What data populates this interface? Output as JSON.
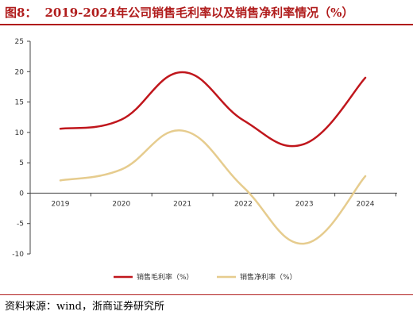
{
  "figure": {
    "label": "图8：",
    "title": "2019-2024年公司销售毛利率以及销售净利率情况（%）",
    "source": "资料来源：wind，浙商证券研究所"
  },
  "chart_data": {
    "type": "line",
    "x": [
      "2019",
      "2020",
      "2021",
      "2022",
      "2023",
      "2024"
    ],
    "series": [
      {
        "name": "销售毛利率（%）",
        "color": "#c0161c",
        "values": [
          10.6,
          12.1,
          19.9,
          12.0,
          8.1,
          19.0
        ]
      },
      {
        "name": "销售净利率（%）",
        "color": "#e6cc8e",
        "values": [
          2.1,
          3.9,
          10.3,
          1.0,
          -8.3,
          2.8
        ]
      }
    ],
    "ylim": [
      -10,
      25
    ],
    "yticks": [
      -10,
      -5,
      0,
      5,
      10,
      15,
      20,
      25
    ],
    "grid": false,
    "legend_position": "bottom"
  }
}
